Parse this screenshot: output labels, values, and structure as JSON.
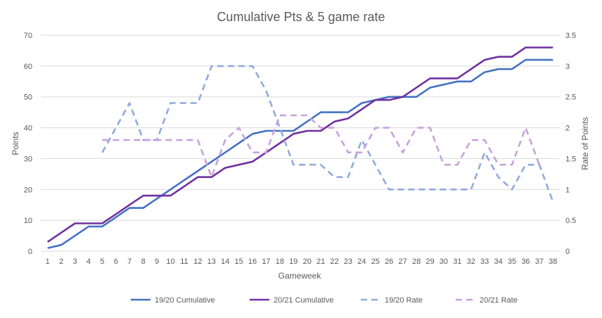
{
  "chart_data": {
    "type": "line",
    "title": "Cumulative Pts & 5 game rate",
    "xlabel": "Gameweek",
    "ylabel": "Points",
    "y2label": "Rate of Points",
    "ylim": [
      0,
      70
    ],
    "y2lim": [
      0,
      3.5
    ],
    "yticks": [
      "0",
      "10",
      "20",
      "30",
      "40",
      "50",
      "60",
      "70"
    ],
    "y2ticks": [
      "0",
      "0.5",
      "1",
      "1.5",
      "2",
      "2.5",
      "3",
      "3.5"
    ],
    "categories": [
      "1",
      "2",
      "3",
      "4",
      "5",
      "6",
      "7",
      "8",
      "9",
      "10",
      "11",
      "12",
      "13",
      "14",
      "15",
      "16",
      "17",
      "18",
      "19",
      "20",
      "21",
      "22",
      "23",
      "24",
      "25",
      "26",
      "27",
      "28",
      "29",
      "30",
      "31",
      "32",
      "33",
      "34",
      "35",
      "36",
      "37",
      "38"
    ],
    "grid": true,
    "legend_position": "bottom",
    "series": [
      {
        "name": "19/20 Cumulative",
        "axis": "left",
        "style": "solid",
        "color": "#4472C4",
        "values": [
          1,
          2,
          5,
          8,
          8,
          11,
          14,
          14,
          17,
          20,
          23,
          26,
          29,
          32,
          35,
          38,
          39,
          39,
          39,
          42,
          45,
          45,
          45,
          48,
          49,
          50,
          50,
          50,
          53,
          54,
          55,
          55,
          58,
          59,
          59,
          62,
          62,
          62
        ]
      },
      {
        "name": "20/21 Cumulative",
        "axis": "left",
        "style": "solid",
        "color": "#7030A0",
        "values": [
          3,
          6,
          9,
          9,
          9,
          12,
          15,
          18,
          18,
          18,
          21,
          24,
          24,
          27,
          28,
          29,
          32,
          35,
          38,
          39,
          39,
          42,
          43,
          46,
          49,
          49,
          50,
          53,
          56,
          56,
          56,
          59,
          62,
          63,
          63,
          66,
          66,
          66
        ]
      },
      {
        "name": "19/20 Rate",
        "axis": "right",
        "style": "dashed",
        "color": "#8FAADC",
        "values": [
          null,
          null,
          null,
          null,
          1.6,
          2.0,
          2.4,
          1.8,
          1.8,
          2.4,
          2.4,
          2.4,
          3.0,
          3.0,
          3.0,
          3.0,
          2.6,
          2.0,
          1.4,
          1.4,
          1.4,
          1.2,
          1.2,
          1.8,
          1.4,
          1.0,
          1.0,
          1.0,
          1.0,
          1.0,
          1.0,
          1.0,
          1.6,
          1.2,
          1.0,
          1.4,
          1.4,
          0.8
        ]
      },
      {
        "name": "20/21 Rate",
        "axis": "right",
        "style": "dashed",
        "color": "#C9A0DC",
        "values": [
          null,
          null,
          null,
          null,
          1.8,
          1.8,
          1.8,
          1.8,
          1.8,
          1.8,
          1.8,
          1.8,
          1.2,
          1.8,
          2.0,
          1.6,
          1.6,
          2.2,
          2.2,
          2.2,
          2.0,
          2.0,
          1.6,
          1.6,
          2.0,
          2.0,
          1.6,
          2.0,
          2.0,
          1.4,
          1.4,
          1.8,
          1.8,
          1.4,
          1.4,
          2.0,
          1.4,
          null
        ]
      }
    ]
  }
}
